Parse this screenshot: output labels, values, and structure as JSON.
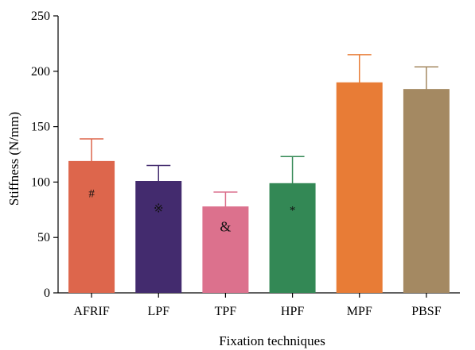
{
  "chart_data": {
    "type": "bar",
    "xlabel": "Fixation techniques",
    "ylabel": "Stiffness (N/mm)",
    "ylim": [
      0,
      250
    ],
    "yticks": [
      0,
      50,
      100,
      150,
      200,
      250
    ],
    "grid": false,
    "categories": [
      "AFRIF",
      "LPF",
      "TPF",
      "HPF",
      "MPF",
      "PBSF"
    ],
    "values": [
      119,
      101,
      78,
      99,
      190,
      184
    ],
    "errors": [
      20,
      14,
      13,
      24,
      25,
      20
    ],
    "annotations": [
      "#",
      "※",
      "&",
      "*",
      "",
      ""
    ],
    "colors": [
      "#dd664c",
      "#432b6e",
      "#dc718d",
      "#338855",
      "#e87c36",
      "#a48962"
    ]
  }
}
